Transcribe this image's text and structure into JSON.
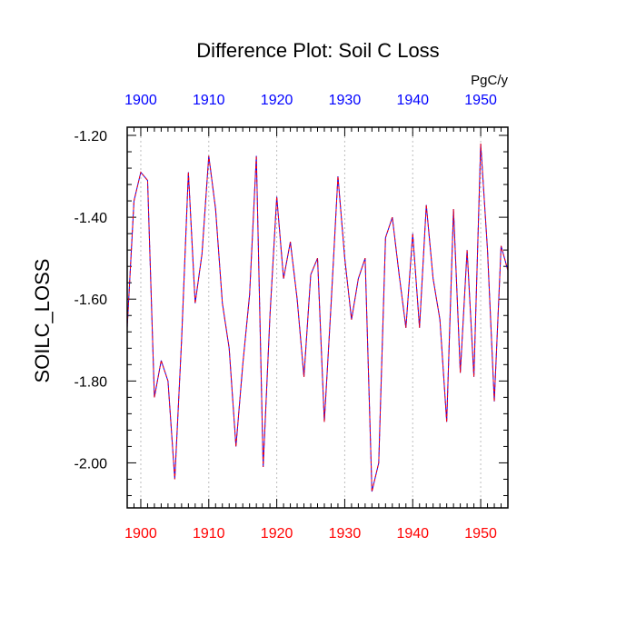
{
  "chart_data": {
    "type": "line",
    "title": "Difference Plot: Soil C Loss",
    "ylabel": "SOILC_LOSS",
    "units": "PgC/y",
    "xlim": [
      1898,
      1954
    ],
    "ylim": [
      -2.11,
      -1.18
    ],
    "x_ticks": [
      1900,
      1910,
      1920,
      1930,
      1940,
      1950
    ],
    "x_tick_labels": [
      "1900",
      "1910",
      "1920",
      "1930",
      "1940",
      "1950"
    ],
    "y_ticks": [
      -1.2,
      -1.4,
      -1.6,
      -1.8,
      -2.0
    ],
    "y_tick_labels": [
      "-1.20",
      "-1.40",
      "-1.60",
      "-1.80",
      "-2.00"
    ],
    "y_minor_step": 0.04,
    "grid": "vertical dotted at major x ticks",
    "colors": {
      "top_ticks": "#0000ff",
      "bottom_ticks": "#ff0000",
      "series_a": "#0000ff",
      "series_b": "#ff0000",
      "grid": "#bdbdbd",
      "axis": "#000000"
    },
    "series": [
      {
        "line_style": "solid",
        "x": [
          1898,
          1899,
          1900,
          1901,
          1902,
          1903,
          1904,
          1905,
          1906,
          1907,
          1908,
          1909,
          1910,
          1911,
          1912,
          1913,
          1914,
          1915,
          1916,
          1917,
          1918,
          1919,
          1920,
          1921,
          1922,
          1923,
          1924,
          1925,
          1926,
          1927,
          1928,
          1929,
          1930,
          1931,
          1932,
          1933,
          1934,
          1935,
          1936,
          1937,
          1938,
          1939,
          1940,
          1941,
          1942,
          1943,
          1944,
          1945,
          1946,
          1947,
          1948,
          1949,
          1950,
          1951,
          1952,
          1953,
          1954
        ],
        "values": [
          -1.67,
          -1.36,
          -1.29,
          -1.31,
          -1.84,
          -1.75,
          -1.8,
          -2.04,
          -1.7,
          -1.29,
          -1.61,
          -1.49,
          -1.25,
          -1.38,
          -1.61,
          -1.72,
          -1.96,
          -1.76,
          -1.59,
          -1.25,
          -2.01,
          -1.64,
          -1.35,
          -1.55,
          -1.46,
          -1.6,
          -1.79,
          -1.54,
          -1.5,
          -1.9,
          -1.61,
          -1.3,
          -1.5,
          -1.65,
          -1.55,
          -1.5,
          -2.07,
          -2.0,
          -1.45,
          -1.4,
          -1.54,
          -1.67,
          -1.44,
          -1.67,
          -1.37,
          -1.55,
          -1.65,
          -1.9,
          -1.38,
          -1.78,
          -1.48,
          -1.79,
          -1.22,
          -1.48,
          -1.85,
          -1.47,
          -1.53
        ]
      },
      {
        "line_style": "dashed",
        "x": [
          1898,
          1899,
          1900,
          1901,
          1902,
          1903,
          1904,
          1905,
          1906,
          1907,
          1908,
          1909,
          1910,
          1911,
          1912,
          1913,
          1914,
          1915,
          1916,
          1917,
          1918,
          1919,
          1920,
          1921,
          1922,
          1923,
          1924,
          1925,
          1926,
          1927,
          1928,
          1929,
          1930,
          1931,
          1932,
          1933,
          1934,
          1935,
          1936,
          1937,
          1938,
          1939,
          1940,
          1941,
          1942,
          1943,
          1944,
          1945,
          1946,
          1947,
          1948,
          1949,
          1950,
          1951,
          1952,
          1953,
          1954
        ],
        "values": [
          -1.67,
          -1.36,
          -1.29,
          -1.31,
          -1.84,
          -1.75,
          -1.8,
          -2.04,
          -1.7,
          -1.29,
          -1.61,
          -1.49,
          -1.25,
          -1.38,
          -1.61,
          -1.72,
          -1.96,
          -1.76,
          -1.59,
          -1.25,
          -2.01,
          -1.64,
          -1.35,
          -1.55,
          -1.46,
          -1.6,
          -1.79,
          -1.54,
          -1.5,
          -1.9,
          -1.61,
          -1.3,
          -1.5,
          -1.65,
          -1.55,
          -1.5,
          -2.07,
          -2.0,
          -1.45,
          -1.4,
          -1.54,
          -1.67,
          -1.44,
          -1.67,
          -1.37,
          -1.55,
          -1.65,
          -1.9,
          -1.38,
          -1.78,
          -1.48,
          -1.79,
          -1.22,
          -1.48,
          -1.85,
          -1.47,
          -1.53
        ]
      }
    ]
  }
}
